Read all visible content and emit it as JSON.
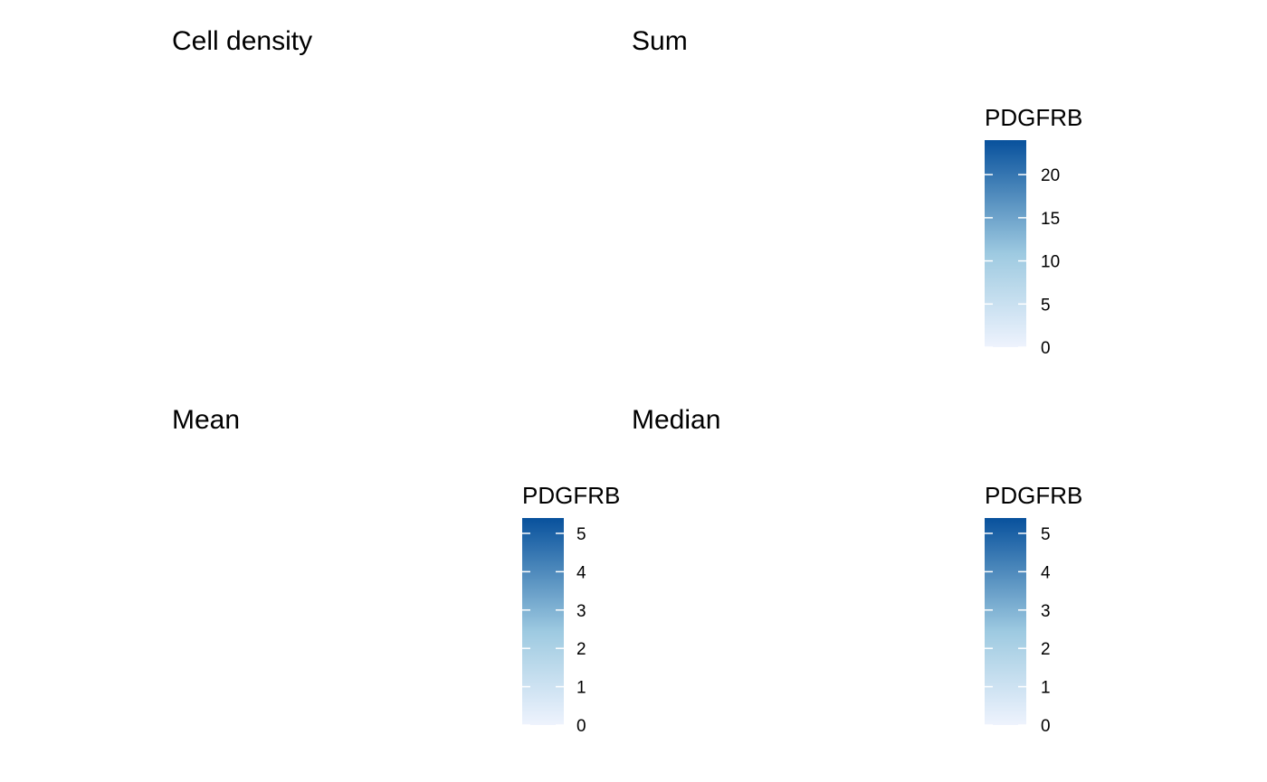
{
  "chart_data": [
    {
      "type": "heatmap",
      "title": "Cell density",
      "values": null
    },
    {
      "type": "heatmap",
      "title": "Sum",
      "legend": {
        "title": "PDGFRB",
        "ticks": [
          "0",
          "5",
          "10",
          "15",
          "20"
        ],
        "range": [
          0,
          24
        ]
      },
      "grid": {
        "cols": 26,
        "rows": 28
      },
      "values": "",
      "colors": {
        "low": "#eef3fd",
        "high": "#08519c"
      }
    },
    {
      "type": "heatmap",
      "title": "Mean",
      "legend": {
        "title": "PDGFRB",
        "ticks": [
          "0",
          "1",
          "2",
          "3",
          "4",
          "5"
        ],
        "range": [
          0,
          5.4
        ]
      },
      "grid": {
        "cols": 26,
        "rows": 28
      },
      "values": "",
      "colors": {
        "low": "#eef3fd",
        "high": "#08519c"
      }
    },
    {
      "type": "heatmap",
      "title": "Median",
      "legend": {
        "title": "PDGFRB",
        "ticks": [
          "0",
          "1",
          "2",
          "3",
          "4",
          "5"
        ],
        "range": [
          0,
          5.4
        ]
      },
      "grid": {
        "cols": 26,
        "rows": 28
      },
      "values": "",
      "colors": {
        "low": "#eef3fd",
        "high": "#08519c"
      }
    }
  ]
}
